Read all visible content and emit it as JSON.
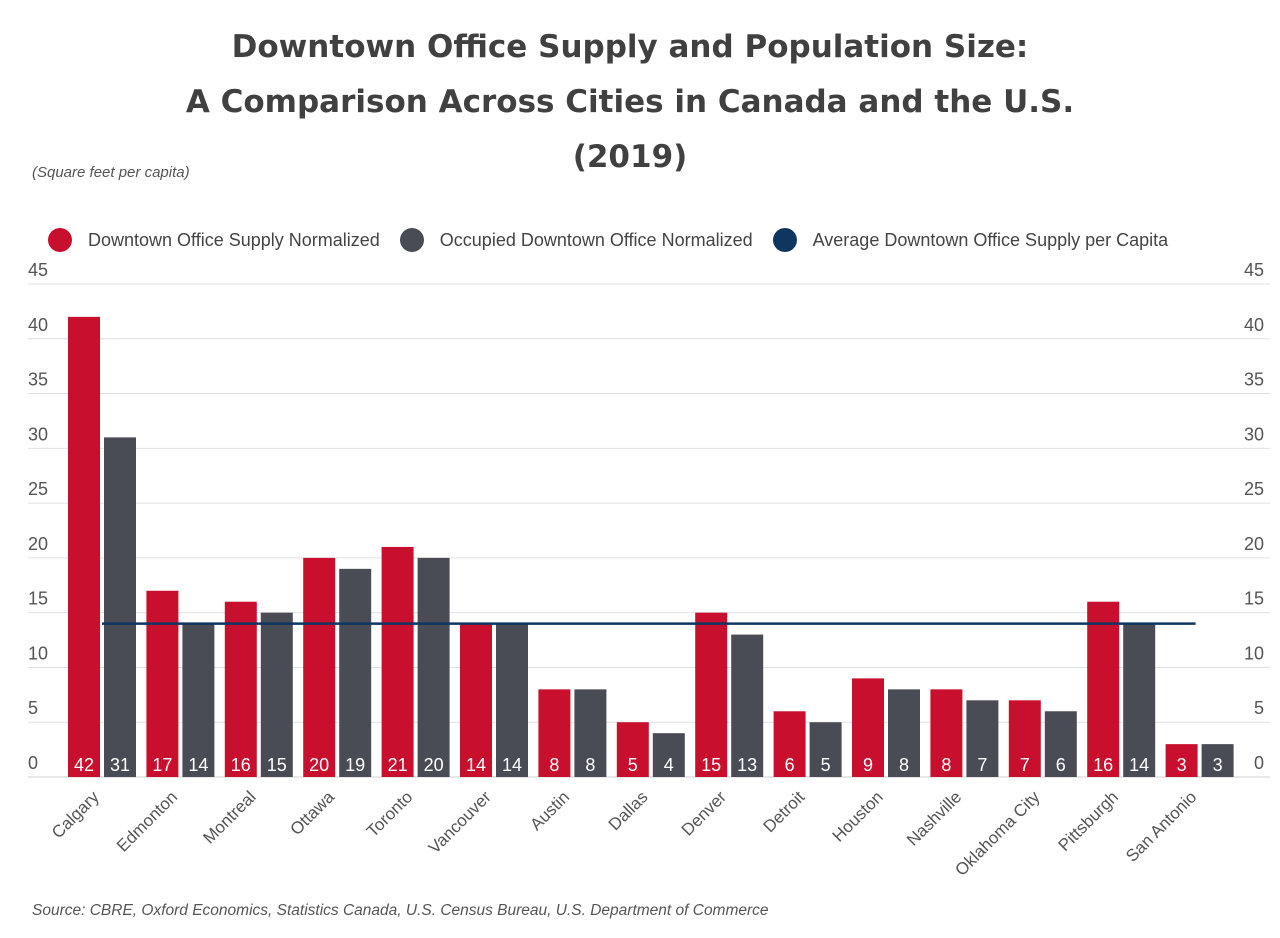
{
  "title": {
    "line1": "Downtown Office Supply and Population Size:",
    "line2": "A Comparison Across Cities in Canada and the U.S.",
    "line3": "(2019)"
  },
  "units_label": "(Square feet per capita)",
  "source": "Source: CBRE, Oxford Economics, Statistics Canada, U.S. Census Bureau, U.S. Department of Commerce",
  "legend": {
    "items": [
      {
        "label": "Downtown Office Supply Normalized",
        "color": "#c8102e"
      },
      {
        "label": "Occupied Downtown Office Normalized",
        "color": "#4a4c55"
      },
      {
        "label": "Average Downtown Office Supply per Capita",
        "color": "#0f3660"
      }
    ]
  },
  "chart_data": {
    "type": "bar",
    "categories": [
      "Calgary",
      "Edmonton",
      "Montreal",
      "Ottawa",
      "Toronto",
      "Vancouver",
      "Austin",
      "Dallas",
      "Denver",
      "Detroit",
      "Houston",
      "Nashville",
      "Oklahoma City",
      "Pittsburgh",
      "San Antonio"
    ],
    "series": [
      {
        "name": "Downtown Office Supply Normalized",
        "color": "#c8102e",
        "values": [
          42,
          17,
          16,
          20,
          21,
          14,
          8,
          5,
          15,
          6,
          9,
          8,
          7,
          16,
          3
        ]
      },
      {
        "name": "Occupied Downtown Office Normalized",
        "color": "#4a4c55",
        "values": [
          31,
          14,
          15,
          19,
          20,
          14,
          8,
          4,
          13,
          5,
          8,
          7,
          6,
          14,
          3
        ]
      }
    ],
    "reference_line": {
      "name": "Average Downtown Office Supply per Capita",
      "value": 14,
      "color": "#0f3660"
    },
    "ylim": [
      0,
      45
    ],
    "yticks": [
      0,
      5,
      10,
      15,
      20,
      25,
      30,
      35,
      40,
      45
    ],
    "grid": true,
    "legend_position": "top",
    "data_labels": "inside-bottom"
  }
}
